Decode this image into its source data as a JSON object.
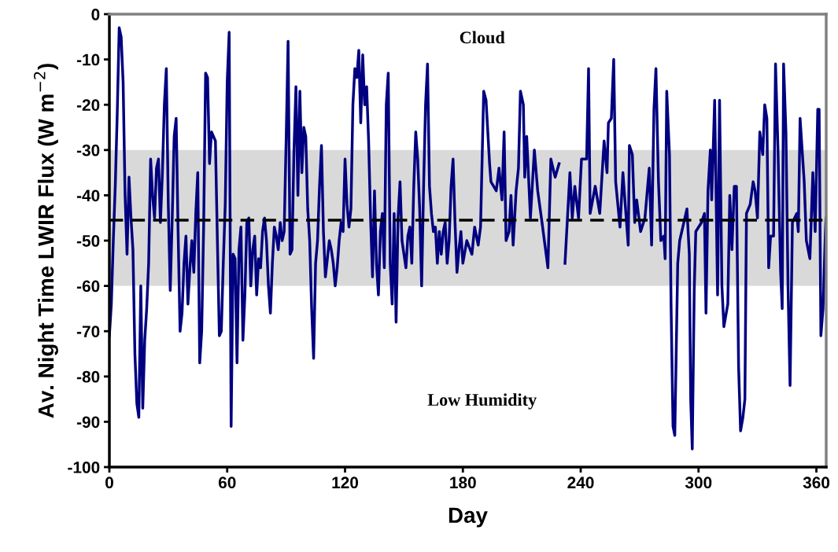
{
  "chart_data": {
    "type": "line",
    "xlabel": "Day",
    "ylabel": "Av. Night Time LWIR Flux (W m$^{−2}$)",
    "xlim": [
      0,
      365
    ],
    "xticks": [
      0,
      60,
      120,
      180,
      240,
      300,
      360
    ],
    "ylim": [
      -100,
      0
    ],
    "yticks": [
      -100,
      -90,
      -80,
      -70,
      -60,
      -50,
      -40,
      -30,
      -20,
      -10,
      0
    ],
    "grid": false,
    "marker": "none",
    "line_style": "solid",
    "annotations": [
      "Cloud",
      "Low Humidity"
    ],
    "bands": [
      {
        "axis": "y",
        "from": -60,
        "to": -30,
        "color": "#d9d9d9"
      }
    ],
    "ref_lines": [
      {
        "axis": "y",
        "value": -45.5,
        "color": "#000000",
        "line_style": "dashed"
      }
    ],
    "series": [
      {
        "color": "#000080",
        "x": [
          0,
          1,
          2,
          3,
          4,
          5,
          6,
          7,
          8,
          9,
          10,
          11,
          12,
          13,
          14,
          15,
          16,
          17,
          18,
          19,
          20,
          21,
          22,
          23,
          24,
          25,
          26,
          27,
          28,
          29,
          30,
          31,
          32,
          33,
          34,
          35,
          36,
          37,
          38,
          39,
          40,
          41,
          42,
          43,
          44,
          45,
          46,
          47,
          48,
          49,
          50,
          51,
          52,
          53,
          54,
          55,
          56,
          57,
          58,
          59,
          60,
          61,
          62,
          63,
          64,
          65,
          66,
          67,
          68,
          69,
          70,
          71,
          72,
          73,
          74,
          75,
          76,
          77,
          78,
          79,
          80,
          81,
          82,
          83,
          84,
          85,
          86,
          87,
          88,
          89,
          90,
          91,
          92,
          93,
          94,
          95,
          96,
          97,
          98,
          99,
          100,
          101,
          102,
          103,
          104,
          105,
          106,
          107,
          108,
          109,
          110,
          111,
          112,
          113,
          114,
          115,
          116,
          117,
          118,
          119,
          120,
          121,
          122,
          123,
          124,
          125,
          126,
          127,
          128,
          129,
          130,
          131,
          132,
          133,
          134,
          135,
          136,
          137,
          138,
          139,
          140,
          141,
          142,
          143,
          144,
          145,
          146,
          147,
          148,
          149,
          150,
          151,
          152,
          153,
          154,
          155,
          156,
          157,
          158,
          159,
          160,
          161,
          162,
          163,
          164,
          165,
          166,
          167,
          168,
          169,
          170,
          171,
          172,
          173,
          174,
          175,
          176,
          177,
          178,
          179,
          180,
          182,
          184.6,
          186,
          187.8,
          189,
          190.6,
          191.8,
          193.6,
          194.3,
          197,
          198.4,
          199.9,
          201,
          202,
          203.5,
          204.5,
          205.6,
          207.1,
          208.3,
          209.3,
          210.8,
          211.5,
          212.5,
          214.4,
          216.4,
          218.1,
          220.3,
          221.8,
          223.3,
          224.8,
          227,
          229,
          230.5,
          232,
          234.5,
          235.7,
          237,
          238.9,
          240.4,
          243,
          244,
          244.8,
          247.4,
          249.7,
          251.9,
          253.4,
          254.1,
          255.6,
          256.8,
          257.8,
          260,
          261.5,
          263,
          264.2,
          264.8,
          266.3,
          267.5,
          268.5,
          270.5,
          272.7,
          274.9,
          276.1,
          277.3,
          278.3,
          279.6,
          280.8,
          282.3,
          283,
          283.8,
          285.2,
          286,
          287,
          287.9,
          289.4,
          290.4,
          294.1,
          295.3,
          296,
          296.8,
          297.8,
          298.6,
          301.5,
          303,
          303.8,
          304.8,
          306,
          306.7,
          308.2,
          309.7,
          310.7,
          311.9,
          312.9,
          314.9,
          315.9,
          317,
          318.2,
          319.3,
          320.4,
          321.4,
          322.6,
          323.6,
          324.4,
          326.3,
          327.8,
          328.8,
          330,
          331.2,
          332.7,
          333.7,
          334.8,
          335.7,
          336.7,
          338.2,
          339.2,
          340.4,
          341.8,
          342.6,
          343.3,
          344.5,
          345.6,
          346.6,
          347.8,
          350,
          350.8,
          351.7,
          353.8,
          354.9,
          356.7,
          358.2,
          359.4,
          360.7,
          361.4,
          362.3,
          363.4,
          364.6,
          364.9
        ],
        "values": [
          -71,
          -64,
          -50,
          -38,
          -22,
          -3,
          -5,
          -15,
          -40,
          -53,
          -36,
          -45,
          -52,
          -75,
          -86,
          -89,
          -60,
          -87,
          -72,
          -65,
          -55,
          -32,
          -40,
          -45,
          -34,
          -32,
          -46,
          -35,
          -20,
          -12,
          -42,
          -61,
          -45,
          -27,
          -23,
          -48,
          -70,
          -66,
          -55,
          -49,
          -64,
          -56,
          -50,
          -57,
          -44,
          -35,
          -77,
          -70,
          -47,
          -13,
          -14,
          -33,
          -26,
          -27,
          -28,
          -50,
          -71,
          -70,
          -55,
          -42,
          -15,
          -4,
          -91,
          -53,
          -54,
          -77,
          -52,
          -47,
          -72,
          -62,
          -46,
          -45,
          -60,
          -52,
          -49,
          -62,
          -54,
          -56,
          -48,
          -45,
          -50,
          -60,
          -66,
          -55,
          -47,
          -49,
          -52,
          -46,
          -50,
          -48,
          -28,
          -6,
          -53,
          -52,
          -30,
          -16,
          -40,
          -17,
          -35,
          -25,
          -27,
          -43,
          -50,
          -65,
          -76,
          -55,
          -50,
          -38,
          -29,
          -48,
          -58,
          -54,
          -50,
          -52,
          -55,
          -60,
          -56,
          -50,
          -46,
          -48,
          -32,
          -42,
          -47,
          -43,
          -20,
          -12,
          -14,
          -8,
          -24,
          -9,
          -20,
          -16,
          -28,
          -45,
          -58,
          -39,
          -55,
          -62,
          -48,
          -44,
          -56,
          -20,
          -13,
          -55,
          -64,
          -44,
          -68,
          -45,
          -37,
          -50,
          -53,
          -56,
          -49,
          -47,
          -55,
          -38,
          -26,
          -32,
          -43,
          -60,
          -38,
          -20,
          -11,
          -38,
          -44,
          -48,
          -47,
          -55,
          -48,
          -53,
          -48,
          -46,
          -55,
          -50,
          -38,
          -32,
          -46,
          -57,
          -52,
          -48,
          -55,
          -50,
          -53,
          -47,
          -51,
          -47,
          -17,
          -19,
          -33,
          -37,
          -39,
          -34,
          -41,
          -26,
          -50,
          -48,
          -40,
          -51,
          -39,
          -34,
          -17,
          -20,
          -36,
          -27,
          -45,
          -30,
          -39,
          -46,
          -51,
          -56,
          -32,
          -36,
          -33,
          null,
          -55,
          -35,
          -45,
          -38,
          -45,
          -32,
          -32,
          -12,
          -44,
          -38,
          -44,
          -28,
          -35,
          -24,
          -23,
          -10,
          -37,
          -47,
          -35,
          -44,
          -51,
          -29,
          -31,
          -46,
          -41,
          -48,
          -45,
          -34,
          -51,
          -21,
          -12,
          -37,
          -50,
          -49,
          -54,
          -17,
          -31,
          -64,
          -91,
          -93,
          -55,
          -50,
          -43,
          -53,
          -85,
          -96,
          -61,
          -48,
          -46,
          -44,
          -66,
          -39,
          -30,
          -41,
          -19,
          -62,
          -19,
          -60,
          -69,
          -64,
          -40,
          -52,
          -38,
          -38,
          -78,
          -92,
          -89,
          -85,
          -44,
          -42,
          -37,
          -39,
          -45,
          -26,
          -31,
          -20,
          -23,
          -56,
          -49,
          -49,
          -11,
          -29,
          -57,
          -65,
          -11,
          -26,
          -61,
          -82,
          -46,
          -44,
          -48,
          -23,
          -37,
          -50,
          -54,
          -35,
          -48,
          -21,
          -21,
          -71,
          -65,
          -48,
          -45
        ]
      }
    ]
  }
}
